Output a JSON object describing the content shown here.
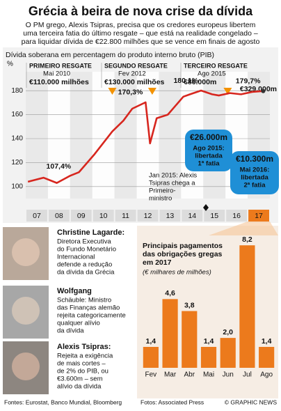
{
  "header": {
    "title": "Grécia à beira de nova crise da dívida",
    "subtitle": [
      "O PM grego, Alexis Tsipras, precisa que os credores europeus libertem",
      "uma terceira fatia do último resgate – que está na realidade congelado –",
      "para liquidar dívida de €22.800 milhões que se vence em finais de agosto"
    ]
  },
  "chart_data": [
    {
      "type": "line",
      "title": "Dívida soberana em percentagem do produto interno bruto (PIB)",
      "y_unit": "%",
      "x": [
        2006.6,
        2007.3,
        2007.9,
        2008.5,
        2008.9,
        2009.6,
        2010.4,
        2010.9,
        2011.3,
        2011.9,
        2012.1,
        2012.4,
        2012.9,
        2013.6,
        2013.9,
        2014.4,
        2014.9,
        2015.2,
        2015.7,
        2016.2,
        2016.7,
        2017.2
      ],
      "series": [
        {
          "name": "PIB",
          "color": "#d7261e",
          "values": [
            104,
            107.4,
            103,
            109,
            112,
            127,
            146,
            155,
            165,
            170.3,
            136,
            157,
            160,
            175,
            177,
            180.1,
            177,
            176,
            178,
            177,
            179,
            179.7
          ],
          "value_labels": [
            null,
            "107,4%",
            null,
            null,
            null,
            null,
            null,
            null,
            null,
            "170,3%",
            null,
            null,
            null,
            null,
            null,
            "180,1%",
            null,
            null,
            null,
            null,
            null,
            "179,7%"
          ]
        }
      ],
      "xlim": [
        2006.5,
        2017.5
      ],
      "xticks": [
        {
          "value": 2007,
          "label": "07"
        },
        {
          "value": 2008,
          "label": "08"
        },
        {
          "value": 2009,
          "label": "09"
        },
        {
          "value": 2010,
          "label": "10"
        },
        {
          "value": 2011,
          "label": "11"
        },
        {
          "value": 2012,
          "label": "12"
        },
        {
          "value": 2013,
          "label": "13"
        },
        {
          "value": 2014,
          "label": "14"
        },
        {
          "value": 2015,
          "label": "15"
        },
        {
          "value": 2016,
          "label": "16"
        },
        {
          "value": 2017,
          "label": "17"
        }
      ],
      "ylim": [
        90,
        190
      ],
      "yticks": [
        100,
        120,
        140,
        160,
        180
      ],
      "grid": true,
      "rescues": [
        {
          "title": "PRIMEIRO RESGATE",
          "date": "Mai 2010",
          "amount": "€110.000 milhões"
        },
        {
          "title": "SEGUNDO RESGATE",
          "date": "Fev 2012",
          "amount": "€130.000 milhões"
        },
        {
          "title": "TERCEIRO RESGATE",
          "date": "Ago 2015",
          "amount": "€86.000m"
        }
      ],
      "end_amount": "€329.000m",
      "callouts": [
        {
          "amount": "€26.000m",
          "lines": [
            "Ago 2015:",
            "libertada",
            "1ª fatia"
          ]
        },
        {
          "amount": "€10.300m",
          "lines": [
            "Mai 2016:",
            "libertada",
            "2ª fatia"
          ]
        }
      ],
      "note": [
        "Jan 2015: Alexis",
        "Tsipras chega a",
        "Primeiro-",
        "ministro"
      ]
    },
    {
      "type": "bar",
      "title": [
        "Principais pagamentos",
        "das obrigações gregas",
        "em 2017"
      ],
      "subtitle": "(€ milhares de milhões)",
      "categories": [
        "Fev",
        "Mar",
        "Abr",
        "Mai",
        "Jun",
        "Jul",
        "Ago"
      ],
      "values": [
        1.4,
        4.6,
        3.8,
        1.4,
        2.0,
        8.2,
        1.4
      ],
      "value_labels": [
        "1,4",
        "4,6",
        "3,8",
        "1,4",
        "2,0",
        "8,2",
        "1,4"
      ],
      "color": "#ec7a1c",
      "ylim": [
        0,
        9
      ]
    }
  ],
  "people": [
    {
      "name": "Christine Lagarde:",
      "lines": [
        "Diretora Executiva",
        "do Fundo Monetário",
        "Internacional",
        "defende a redução",
        "da dívida da Grécia"
      ]
    },
    {
      "name": "Wolfgang",
      "lines": [
        "Schäuble: Ministro",
        "das Finanças alemão",
        "rejeita categoricamente",
        "qualquer alívio",
        "da dívida"
      ]
    },
    {
      "name": "Alexis Tsipras:",
      "lines": [
        "Rejeita a exigência",
        "de mais cortes –",
        "de 2% do PIB, ou",
        "€3.600m – sem",
        "alívio da dívida"
      ]
    }
  ],
  "footer": {
    "sources": "Fontes: Eurostat, Banco Mundial, Bloomberg",
    "photos": "Fotos: Associated Press",
    "credit": "© GRAPHIC NEWS"
  }
}
